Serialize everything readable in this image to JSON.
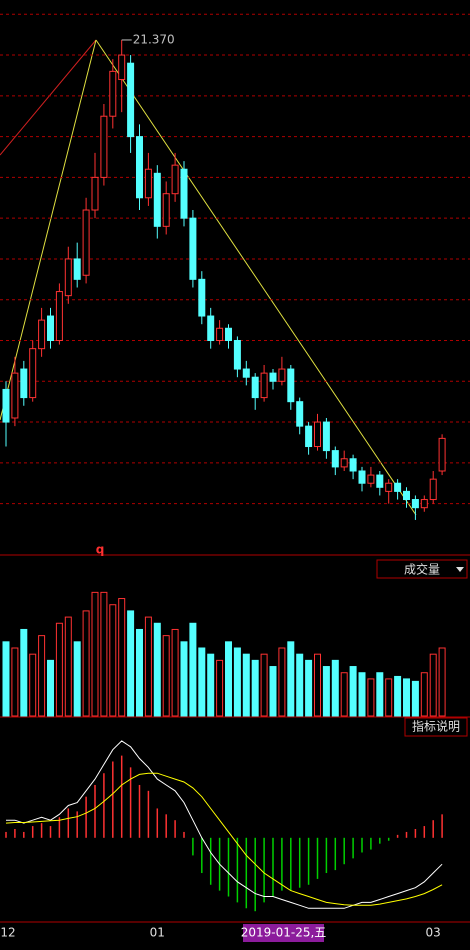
{
  "chart_data": {
    "type": "candlestick",
    "high_label": "21.370",
    "marker": "q",
    "cursor_label": "2019-01-25,五",
    "categories": [
      "12",
      null,
      null,
      null,
      null,
      null,
      null,
      null,
      null,
      null,
      null,
      null,
      null,
      null,
      null,
      null,
      null,
      "01",
      null,
      null,
      null,
      null,
      null,
      null,
      null,
      null,
      null,
      null,
      null,
      null,
      null,
      null,
      null,
      null,
      null,
      null,
      null,
      null,
      null,
      null,
      null,
      null,
      null,
      null,
      null,
      null,
      null,
      null,
      "03",
      null
    ],
    "candles": [
      [
        12.8,
        13.0,
        11.4,
        12.0
      ],
      [
        12.1,
        13.6,
        11.9,
        13.2
      ],
      [
        13.3,
        13.5,
        12.4,
        12.6
      ],
      [
        12.6,
        14.0,
        12.5,
        13.8
      ],
      [
        13.8,
        14.8,
        13.6,
        14.5
      ],
      [
        14.6,
        14.8,
        13.8,
        14.0
      ],
      [
        14.0,
        15.4,
        13.9,
        15.2
      ],
      [
        15.1,
        16.3,
        14.9,
        16.0
      ],
      [
        16.0,
        16.4,
        15.3,
        15.5
      ],
      [
        15.6,
        17.5,
        15.4,
        17.2
      ],
      [
        17.2,
        18.6,
        17.0,
        18.0
      ],
      [
        18.0,
        19.8,
        17.8,
        19.5
      ],
      [
        19.5,
        20.9,
        19.2,
        20.6
      ],
      [
        20.4,
        21.37,
        19.6,
        21.0
      ],
      [
        20.8,
        21.0,
        18.6,
        19.0
      ],
      [
        19.0,
        19.3,
        17.2,
        17.5
      ],
      [
        17.5,
        18.6,
        17.3,
        18.2
      ],
      [
        18.1,
        18.3,
        16.5,
        16.8
      ],
      [
        16.8,
        17.9,
        16.6,
        17.6
      ],
      [
        17.6,
        18.6,
        17.4,
        18.3
      ],
      [
        18.2,
        18.4,
        16.8,
        17.0
      ],
      [
        17.0,
        17.2,
        15.3,
        15.5
      ],
      [
        15.5,
        15.7,
        14.4,
        14.6
      ],
      [
        14.6,
        14.8,
        13.8,
        14.0
      ],
      [
        14.0,
        14.5,
        13.9,
        14.3
      ],
      [
        14.3,
        14.4,
        13.8,
        14.0
      ],
      [
        14.0,
        14.1,
        13.1,
        13.3
      ],
      [
        13.3,
        13.5,
        12.9,
        13.1
      ],
      [
        13.1,
        13.2,
        12.3,
        12.6
      ],
      [
        12.6,
        13.4,
        12.5,
        13.2
      ],
      [
        13.2,
        13.3,
        12.8,
        13.0
      ],
      [
        13.0,
        13.6,
        12.9,
        13.3
      ],
      [
        13.3,
        13.4,
        12.3,
        12.5
      ],
      [
        12.5,
        12.6,
        11.7,
        11.9
      ],
      [
        11.9,
        12.0,
        11.2,
        11.4
      ],
      [
        11.4,
        12.2,
        11.3,
        12.0
      ],
      [
        12.0,
        12.1,
        11.1,
        11.3
      ],
      [
        11.3,
        11.4,
        10.7,
        10.9
      ],
      [
        10.9,
        11.3,
        10.8,
        11.1
      ],
      [
        11.1,
        11.2,
        10.6,
        10.8
      ],
      [
        10.8,
        10.9,
        10.3,
        10.5
      ],
      [
        10.5,
        10.9,
        10.4,
        10.7
      ],
      [
        10.7,
        10.8,
        10.2,
        10.4
      ],
      [
        10.3,
        10.6,
        10.0,
        10.5
      ],
      [
        10.5,
        10.6,
        10.1,
        10.3
      ],
      [
        10.3,
        10.4,
        9.9,
        10.1
      ],
      [
        10.1,
        10.2,
        9.6,
        9.9
      ],
      [
        9.9,
        10.2,
        9.8,
        10.1
      ],
      [
        10.1,
        10.8,
        10.0,
        10.6
      ],
      [
        10.8,
        11.7,
        10.7,
        11.6
      ]
    ],
    "ylim": [
      8.74,
      22.35
    ],
    "yticks": [
      10,
      11,
      12,
      13,
      14,
      15,
      16,
      17,
      18,
      19,
      20,
      21,
      22
    ],
    "colors": {
      "up": "#ff3232",
      "down": "#54ffff",
      "grid": "#b00000"
    },
    "volume": {
      "title": "成交量",
      "ylim": [
        0,
        110
      ],
      "values": [
        60,
        55,
        70,
        50,
        65,
        45,
        75,
        80,
        60,
        85,
        100,
        100,
        90,
        95,
        85,
        70,
        80,
        75,
        65,
        70,
        60,
        75,
        55,
        50,
        45,
        60,
        55,
        50,
        45,
        50,
        40,
        55,
        60,
        50,
        45,
        50,
        40,
        45,
        35,
        40,
        35,
        30,
        35,
        30,
        32,
        30,
        28,
        35,
        50,
        55
      ]
    },
    "macd": {
      "title": "指标说明",
      "ylim": [
        -1.4,
        1.7
      ],
      "bars": [
        0.1,
        0.15,
        0.1,
        0.2,
        0.25,
        0.2,
        0.35,
        0.5,
        0.45,
        0.7,
        0.9,
        1.1,
        1.3,
        1.4,
        1.2,
        0.9,
        0.8,
        0.5,
        0.4,
        0.3,
        0.1,
        -0.3,
        -0.6,
        -0.8,
        -0.9,
        -1.0,
        -1.1,
        -1.2,
        -1.25,
        -1.1,
        -1.0,
        -0.9,
        -0.9,
        -0.85,
        -0.8,
        -0.7,
        -0.6,
        -0.55,
        -0.45,
        -0.35,
        -0.25,
        -0.2,
        -0.1,
        -0.05,
        0.05,
        0.1,
        0.15,
        0.2,
        0.3,
        0.4
      ],
      "dif": [
        0.3,
        0.3,
        0.25,
        0.3,
        0.35,
        0.3,
        0.4,
        0.55,
        0.6,
        0.8,
        1.0,
        1.25,
        1.5,
        1.65,
        1.55,
        1.35,
        1.2,
        1.0,
        0.9,
        0.8,
        0.6,
        0.3,
        0.0,
        -0.25,
        -0.45,
        -0.6,
        -0.75,
        -0.85,
        -0.95,
        -1.0,
        -1.0,
        -1.05,
        -1.1,
        -1.15,
        -1.2,
        -1.2,
        -1.2,
        -1.2,
        -1.2,
        -1.15,
        -1.1,
        -1.1,
        -1.05,
        -1.0,
        -0.95,
        -0.9,
        -0.85,
        -0.75,
        -0.6,
        -0.45
      ],
      "dea": [
        0.25,
        0.26,
        0.26,
        0.27,
        0.28,
        0.29,
        0.3,
        0.33,
        0.36,
        0.42,
        0.5,
        0.62,
        0.75,
        0.9,
        1.0,
        1.08,
        1.1,
        1.1,
        1.05,
        1.0,
        0.95,
        0.85,
        0.7,
        0.5,
        0.3,
        0.1,
        -0.1,
        -0.3,
        -0.45,
        -0.6,
        -0.7,
        -0.8,
        -0.9,
        -0.95,
        -1.0,
        -1.05,
        -1.1,
        -1.12,
        -1.14,
        -1.15,
        -1.15,
        -1.15,
        -1.13,
        -1.1,
        -1.07,
        -1.04,
        -1.0,
        -0.95,
        -0.88,
        -0.8
      ],
      "colors": {
        "dif": "#ffffff",
        "dea": "#ffff00",
        "up": "#ff3232",
        "down": "#00d000"
      }
    }
  }
}
